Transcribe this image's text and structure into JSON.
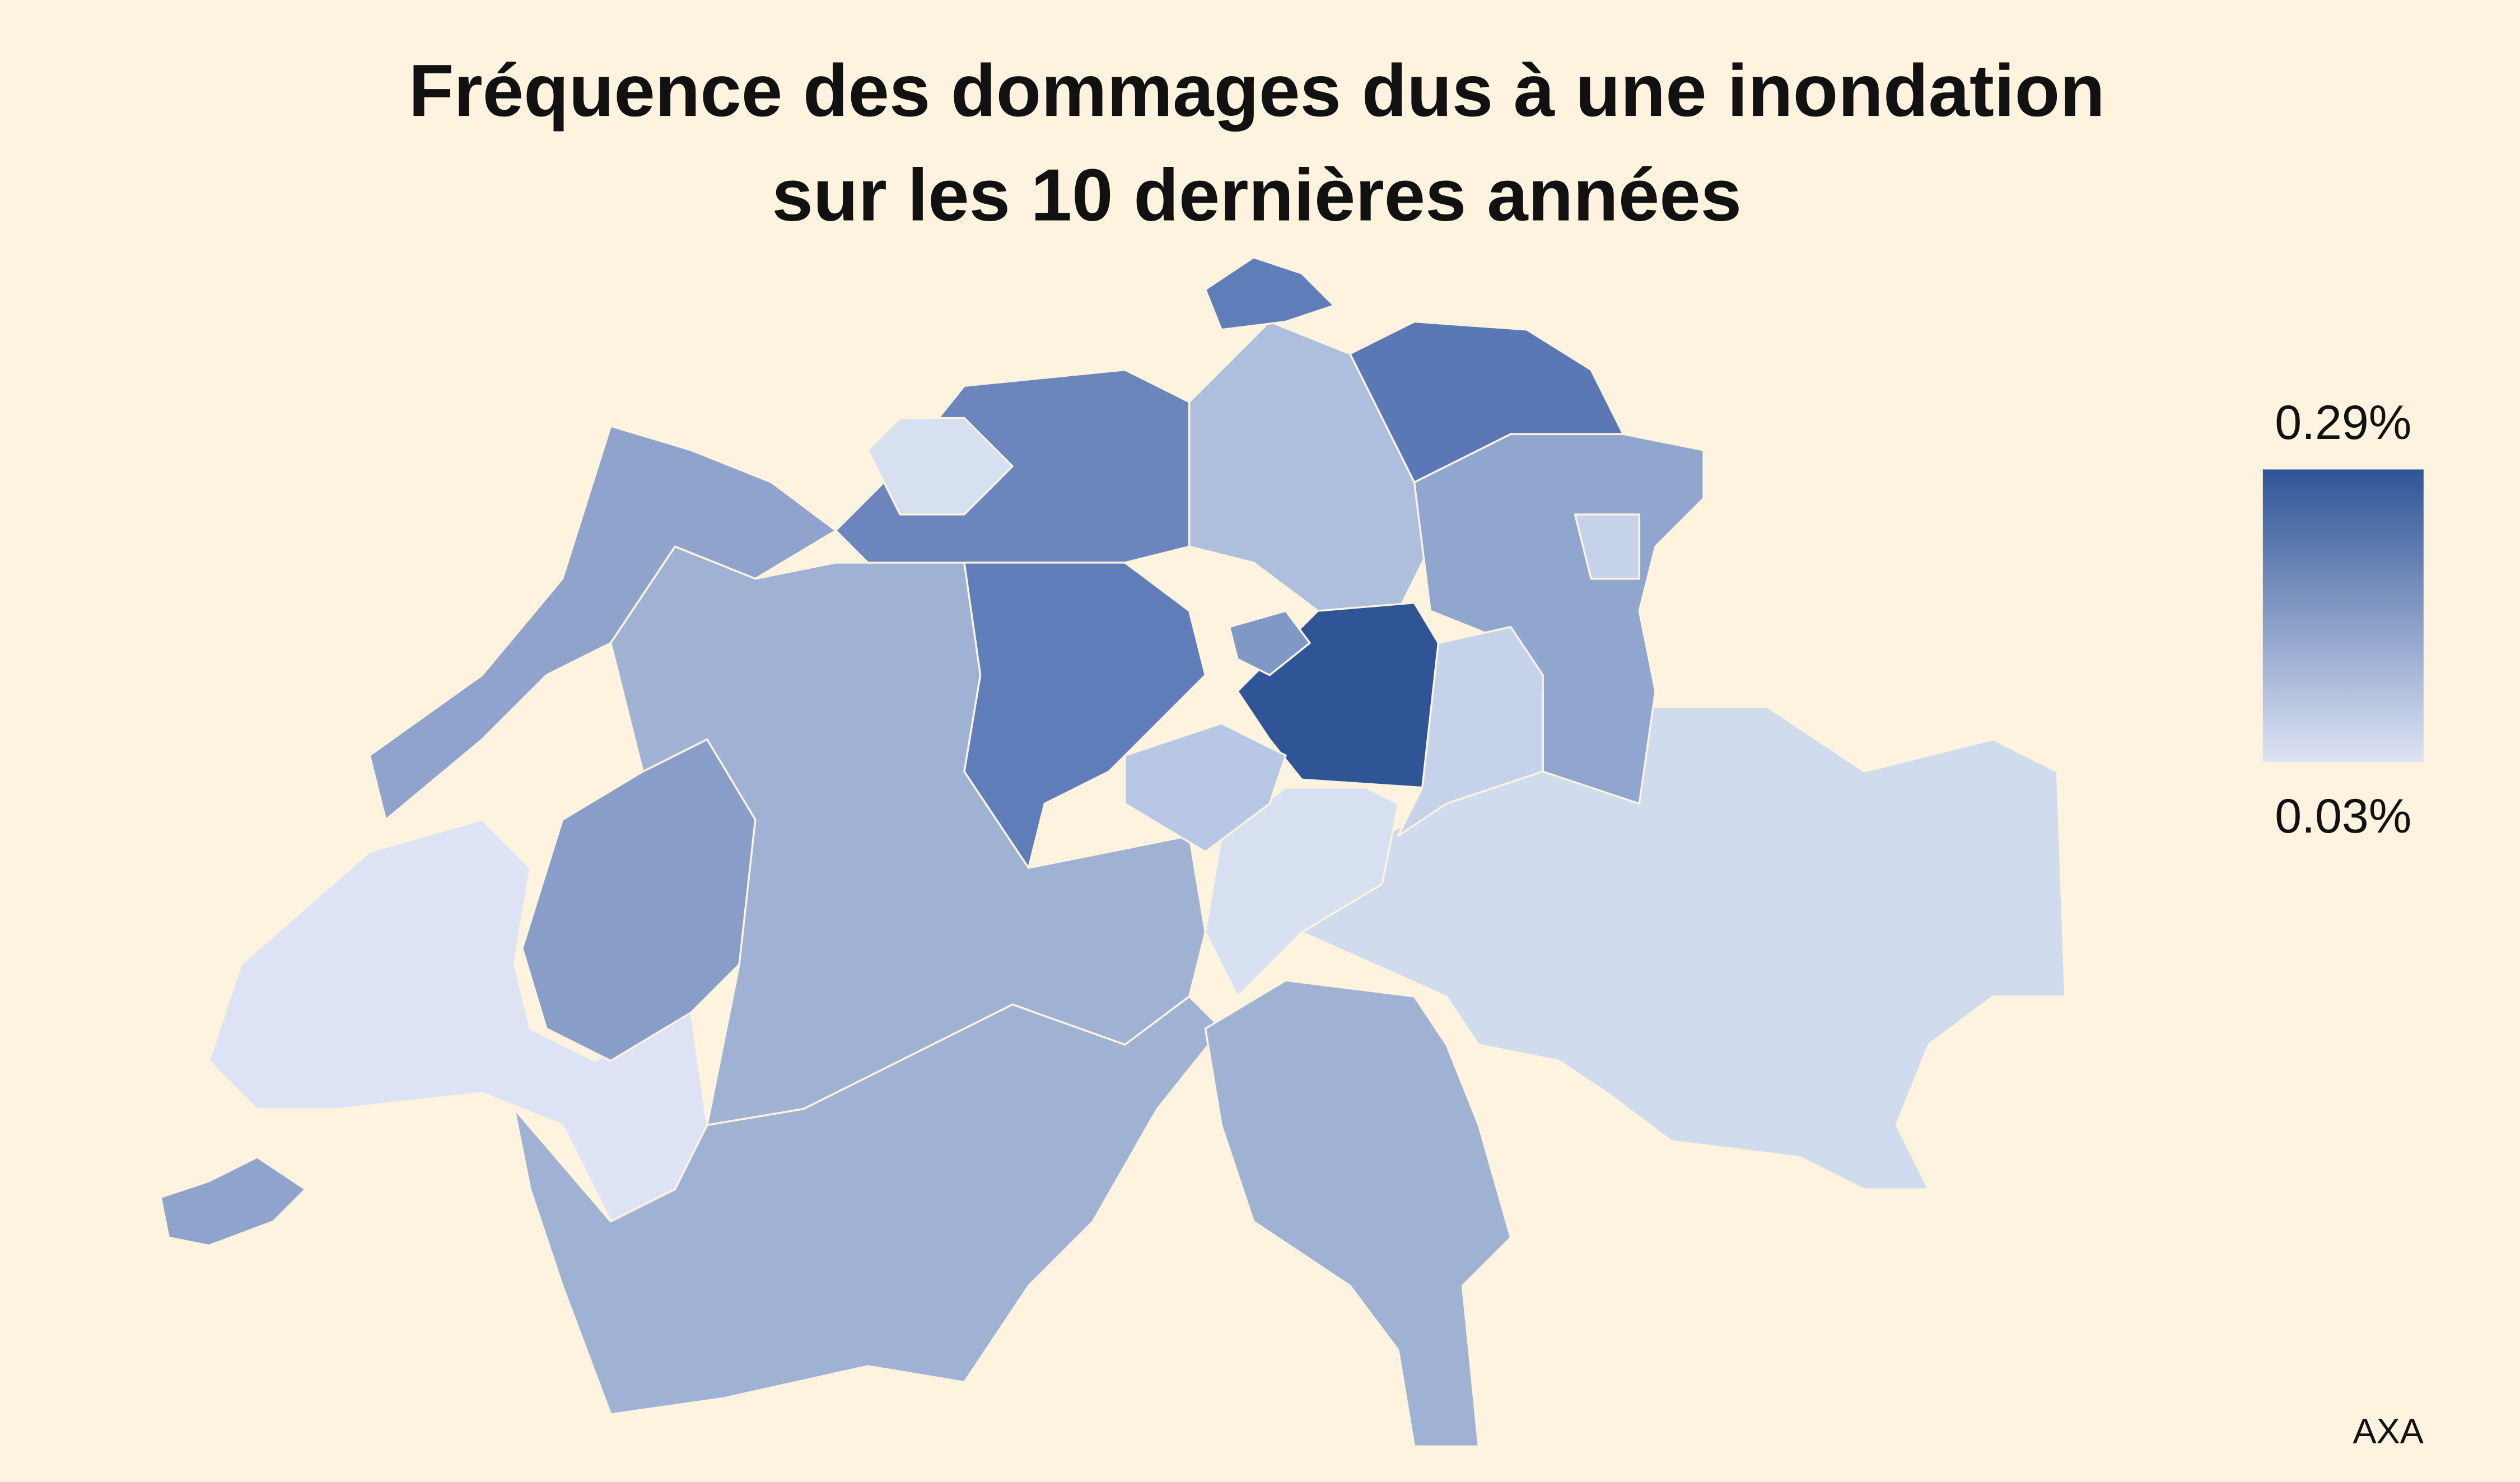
{
  "title": [
    "Fréquence des dommages dus à une inondation",
    "sur les 10 dernières années"
  ],
  "legend": {
    "max_label": "0.29%",
    "min_label": "0.03%",
    "colors": [
      "#2f5597",
      "#dde3f4"
    ]
  },
  "source": "AXA"
}
